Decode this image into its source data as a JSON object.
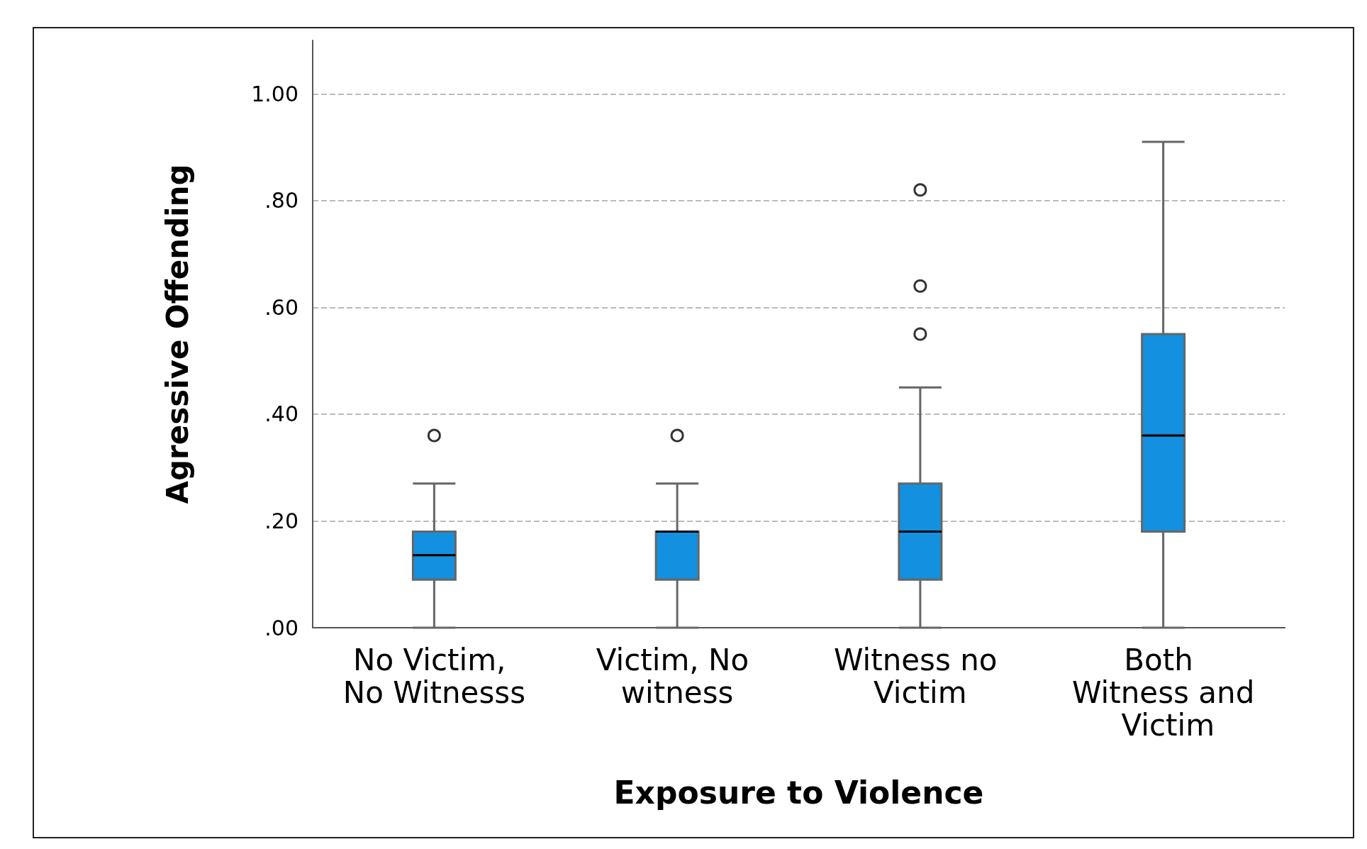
{
  "chart_data": {
    "type": "box",
    "xlabel": "Exposure to Violence",
    "ylabel": "Agressive Offending",
    "categories": [
      "No Victim, No Witnesss",
      "Victim, No witness",
      "Witness no Victim",
      "Both Witness and Victim"
    ],
    "series": [
      {
        "color": "#1490e0",
        "boxes": [
          {
            "low": 0,
            "q1": 0.09,
            "median": 0.136,
            "q3": 0.18,
            "high": 0.27,
            "outliers": [
              0.36
            ]
          },
          {
            "low": 0,
            "q1": 0.09,
            "median": 0.18,
            "q3": 0.18,
            "high": 0.27,
            "outliers": [
              0.36
            ]
          },
          {
            "low": 0,
            "q1": 0.09,
            "median": 0.18,
            "q3": 0.27,
            "high": 0.45,
            "outliers": [
              0.55,
              0.64,
              0.82
            ]
          },
          {
            "low": 0,
            "q1": 0.18,
            "median": 0.36,
            "q3": 0.55,
            "high": 0.91
          }
        ]
      }
    ],
    "ylim": [
      0,
      1.1
    ],
    "yticks": [
      {
        "value": 0,
        "label": ".00"
      },
      {
        "value": 0.2,
        "label": ".20"
      },
      {
        "value": 0.4,
        "label": ".40"
      },
      {
        "value": 0.6,
        "label": ".60"
      },
      {
        "value": 0.8,
        "label": ".80"
      },
      {
        "value": 1,
        "label": "1.00"
      }
    ],
    "grid": "y",
    "marker": "circle"
  }
}
